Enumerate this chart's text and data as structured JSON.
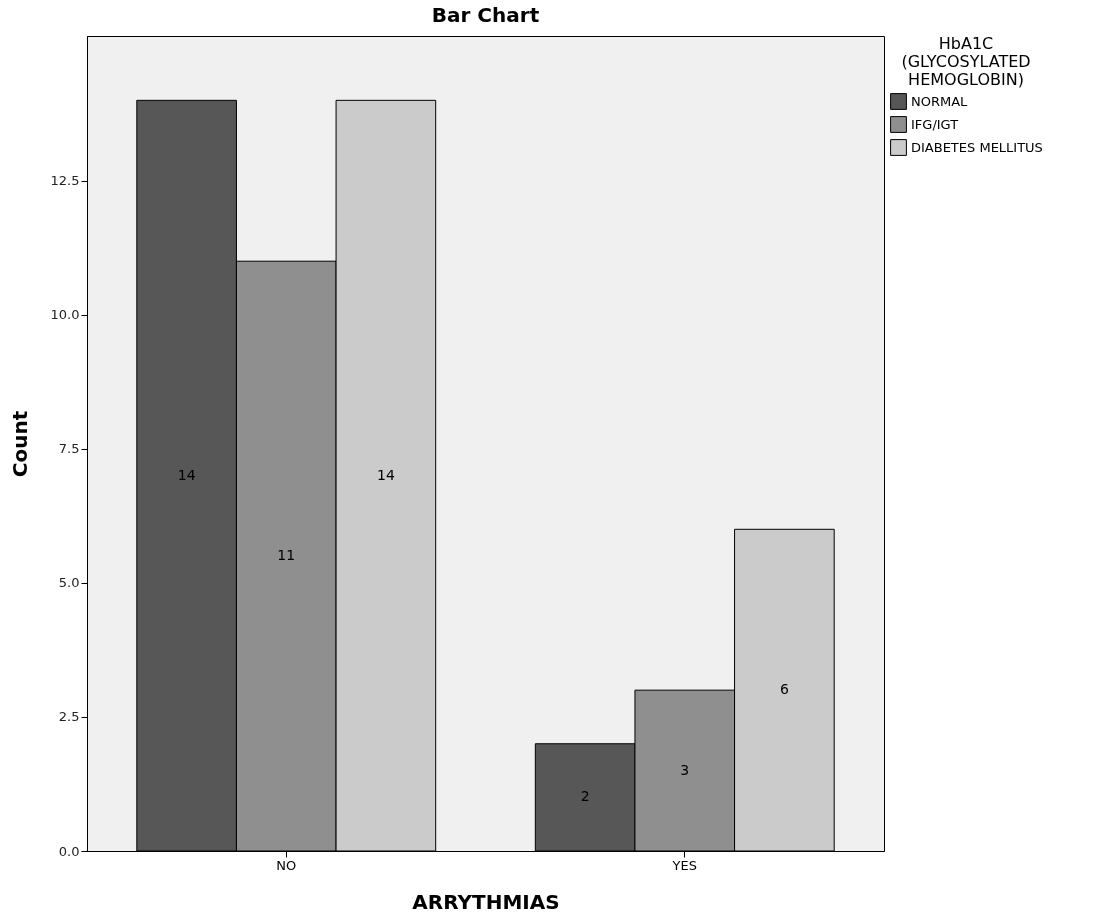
{
  "chart_data": {
    "type": "bar",
    "title": "Bar Chart",
    "xlabel": "ARRYTHMIAS",
    "ylabel": "Count",
    "legend_title": "HbA1C (GLYCOSYLATED HEMOGLOBIN)",
    "categories": [
      "NO",
      "YES"
    ],
    "series": [
      {
        "name": "NORMAL",
        "color": "#575757",
        "values": [
          14,
          2
        ]
      },
      {
        "name": "IFG/IGT",
        "color": "#8f8f8f",
        "values": [
          11,
          3
        ]
      },
      {
        "name": "DIABETES MELLITUS",
        "color": "#cbcbcb",
        "values": [
          14,
          6
        ]
      }
    ],
    "ylim": [
      0,
      15.2
    ],
    "yticks": [
      {
        "value": 0,
        "label": "0.0"
      },
      2.5,
      {
        "value": 5,
        "label": "5.0"
      },
      7.5,
      {
        "value": 10,
        "label": "10.0"
      },
      12.5
    ],
    "data_labels": true,
    "grid": false,
    "legend": "top right"
  }
}
